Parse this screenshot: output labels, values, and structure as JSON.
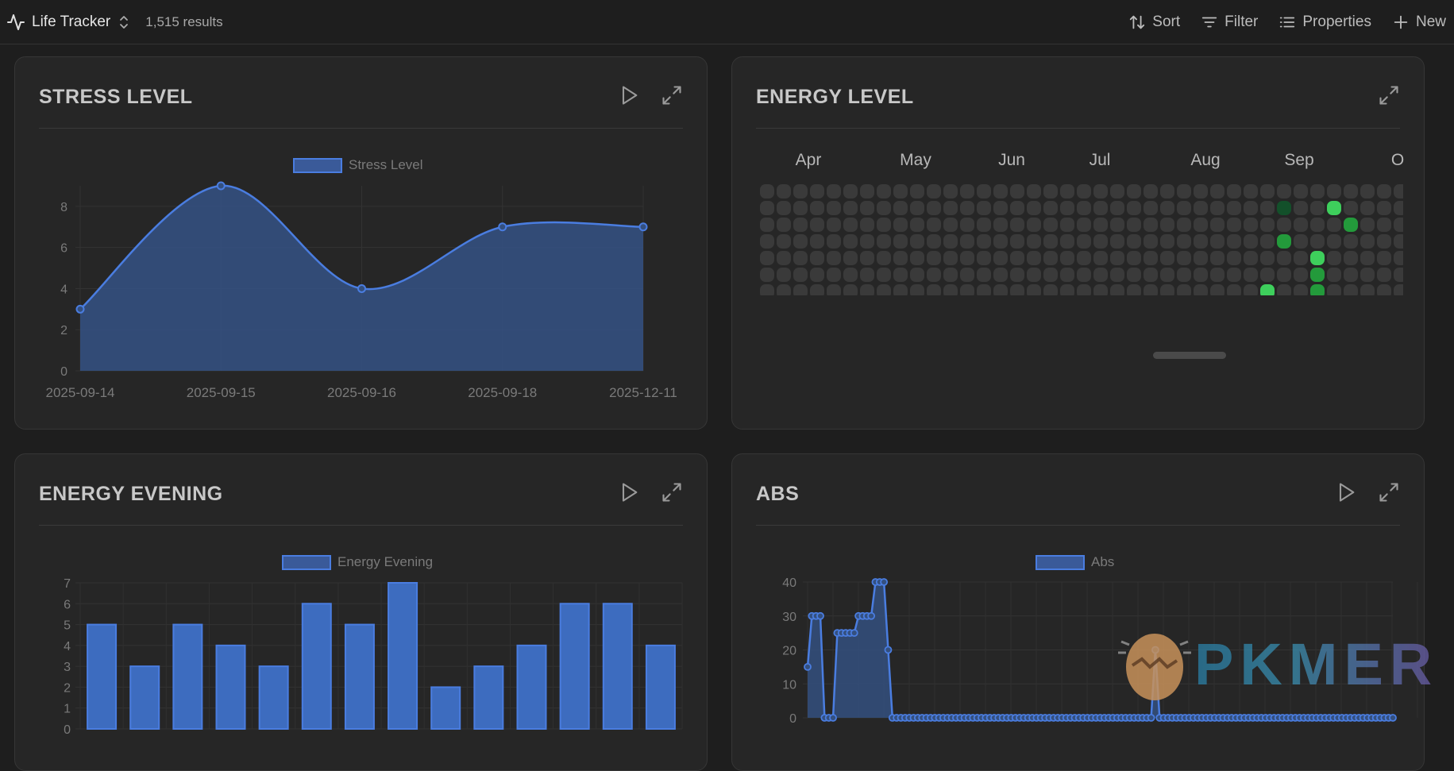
{
  "toolbar": {
    "title": "Life Tracker",
    "count": "1,515 results",
    "sort": "Sort",
    "filter": "Filter",
    "properties": "Properties",
    "new": "New"
  },
  "cards": {
    "stress": {
      "title": "STRESS LEVEL",
      "legend": "Stress Level"
    },
    "energy": {
      "title": "ENERGY LEVEL",
      "months": [
        "Apr",
        "May",
        "Jun",
        "Jul",
        "Aug",
        "Sep",
        "O"
      ]
    },
    "evening": {
      "title": "ENERGY EVENING",
      "legend": "Energy Evening"
    },
    "abs": {
      "title": "ABS",
      "legend": "Abs"
    }
  },
  "watermark": {
    "text": "PKMER"
  },
  "colors": {
    "accent": "#4a7de0",
    "fill": "#34507f",
    "green_bright": "#3ecf5c",
    "green_mid": "#239a3b",
    "green_dark": "#13502a",
    "dot_empty": "#3a3a3a"
  },
  "chart_data": [
    {
      "type": "area",
      "title": "STRESS LEVEL",
      "categories": [
        "2025-09-14",
        "2025-09-15",
        "2025-09-16",
        "2025-09-18",
        "2025-12-11"
      ],
      "series": [
        {
          "name": "Stress Level",
          "values": [
            3,
            9,
            4,
            7,
            7
          ]
        }
      ],
      "ylim": [
        0,
        9
      ],
      "yticks": [
        0,
        2,
        4,
        6,
        8
      ],
      "grid": true,
      "legend": "top-center"
    },
    {
      "type": "heatmap",
      "title": "ENERGY LEVEL",
      "months": [
        "Apr",
        "May",
        "Jun",
        "Jul",
        "Aug",
        "Sep",
        "O"
      ],
      "rows": 7,
      "cols": 39,
      "cells": [
        {
          "col": 31,
          "row": 1,
          "level": 1
        },
        {
          "col": 34,
          "row": 1,
          "level": 3
        },
        {
          "col": 35,
          "row": 2,
          "level": 2
        },
        {
          "col": 31,
          "row": 3,
          "level": 2
        },
        {
          "col": 33,
          "row": 4,
          "level": 3
        },
        {
          "col": 33,
          "row": 5,
          "level": 2
        },
        {
          "col": 30,
          "row": 6,
          "level": 3
        },
        {
          "col": 33,
          "row": 6,
          "level": 2
        }
      ]
    },
    {
      "type": "bar",
      "title": "ENERGY EVENING",
      "series": [
        {
          "name": "Energy Evening",
          "values": [
            5,
            3,
            5,
            4,
            3,
            6,
            5,
            7,
            2,
            3,
            4,
            6,
            6,
            4
          ]
        }
      ],
      "ylim": [
        0,
        7
      ],
      "yticks": [
        0,
        1,
        2,
        3,
        4,
        5,
        6,
        7
      ],
      "grid": true,
      "legend": "top-center"
    },
    {
      "type": "line",
      "title": "ABS",
      "series": [
        {
          "name": "Abs",
          "values": [
            15,
            30,
            30,
            30,
            0,
            0,
            0,
            25,
            25,
            25,
            25,
            25,
            30,
            30,
            30,
            30,
            40,
            40,
            40,
            20,
            0,
            0,
            0,
            0,
            0,
            0,
            0,
            0,
            0,
            0,
            0,
            0,
            0,
            0,
            0,
            0,
            0,
            0,
            0,
            0,
            0,
            0,
            0,
            0,
            0,
            0,
            0,
            0,
            0,
            0,
            0,
            0,
            0,
            0,
            0,
            0,
            0,
            0,
            0,
            0,
            0,
            0,
            0,
            0,
            0,
            0,
            0,
            0,
            0,
            0,
            0,
            0,
            0,
            0,
            0,
            0,
            0,
            0,
            0,
            0,
            0,
            0,
            20,
            0,
            0,
            0,
            0,
            0,
            0,
            0,
            0,
            0,
            0,
            0,
            0,
            0,
            0,
            0,
            0,
            0,
            0,
            0,
            0,
            0,
            0,
            0,
            0,
            0,
            0,
            0,
            0,
            0,
            0,
            0,
            0,
            0,
            0,
            0,
            0,
            0,
            0,
            0,
            0,
            0,
            0,
            0,
            0,
            0,
            0,
            0,
            0,
            0,
            0,
            0,
            0,
            0,
            0,
            0,
            0
          ]
        }
      ],
      "ylim": [
        0,
        40
      ],
      "yticks": [
        0,
        10,
        20,
        30,
        40
      ],
      "grid": true,
      "legend": "top-center"
    }
  ]
}
